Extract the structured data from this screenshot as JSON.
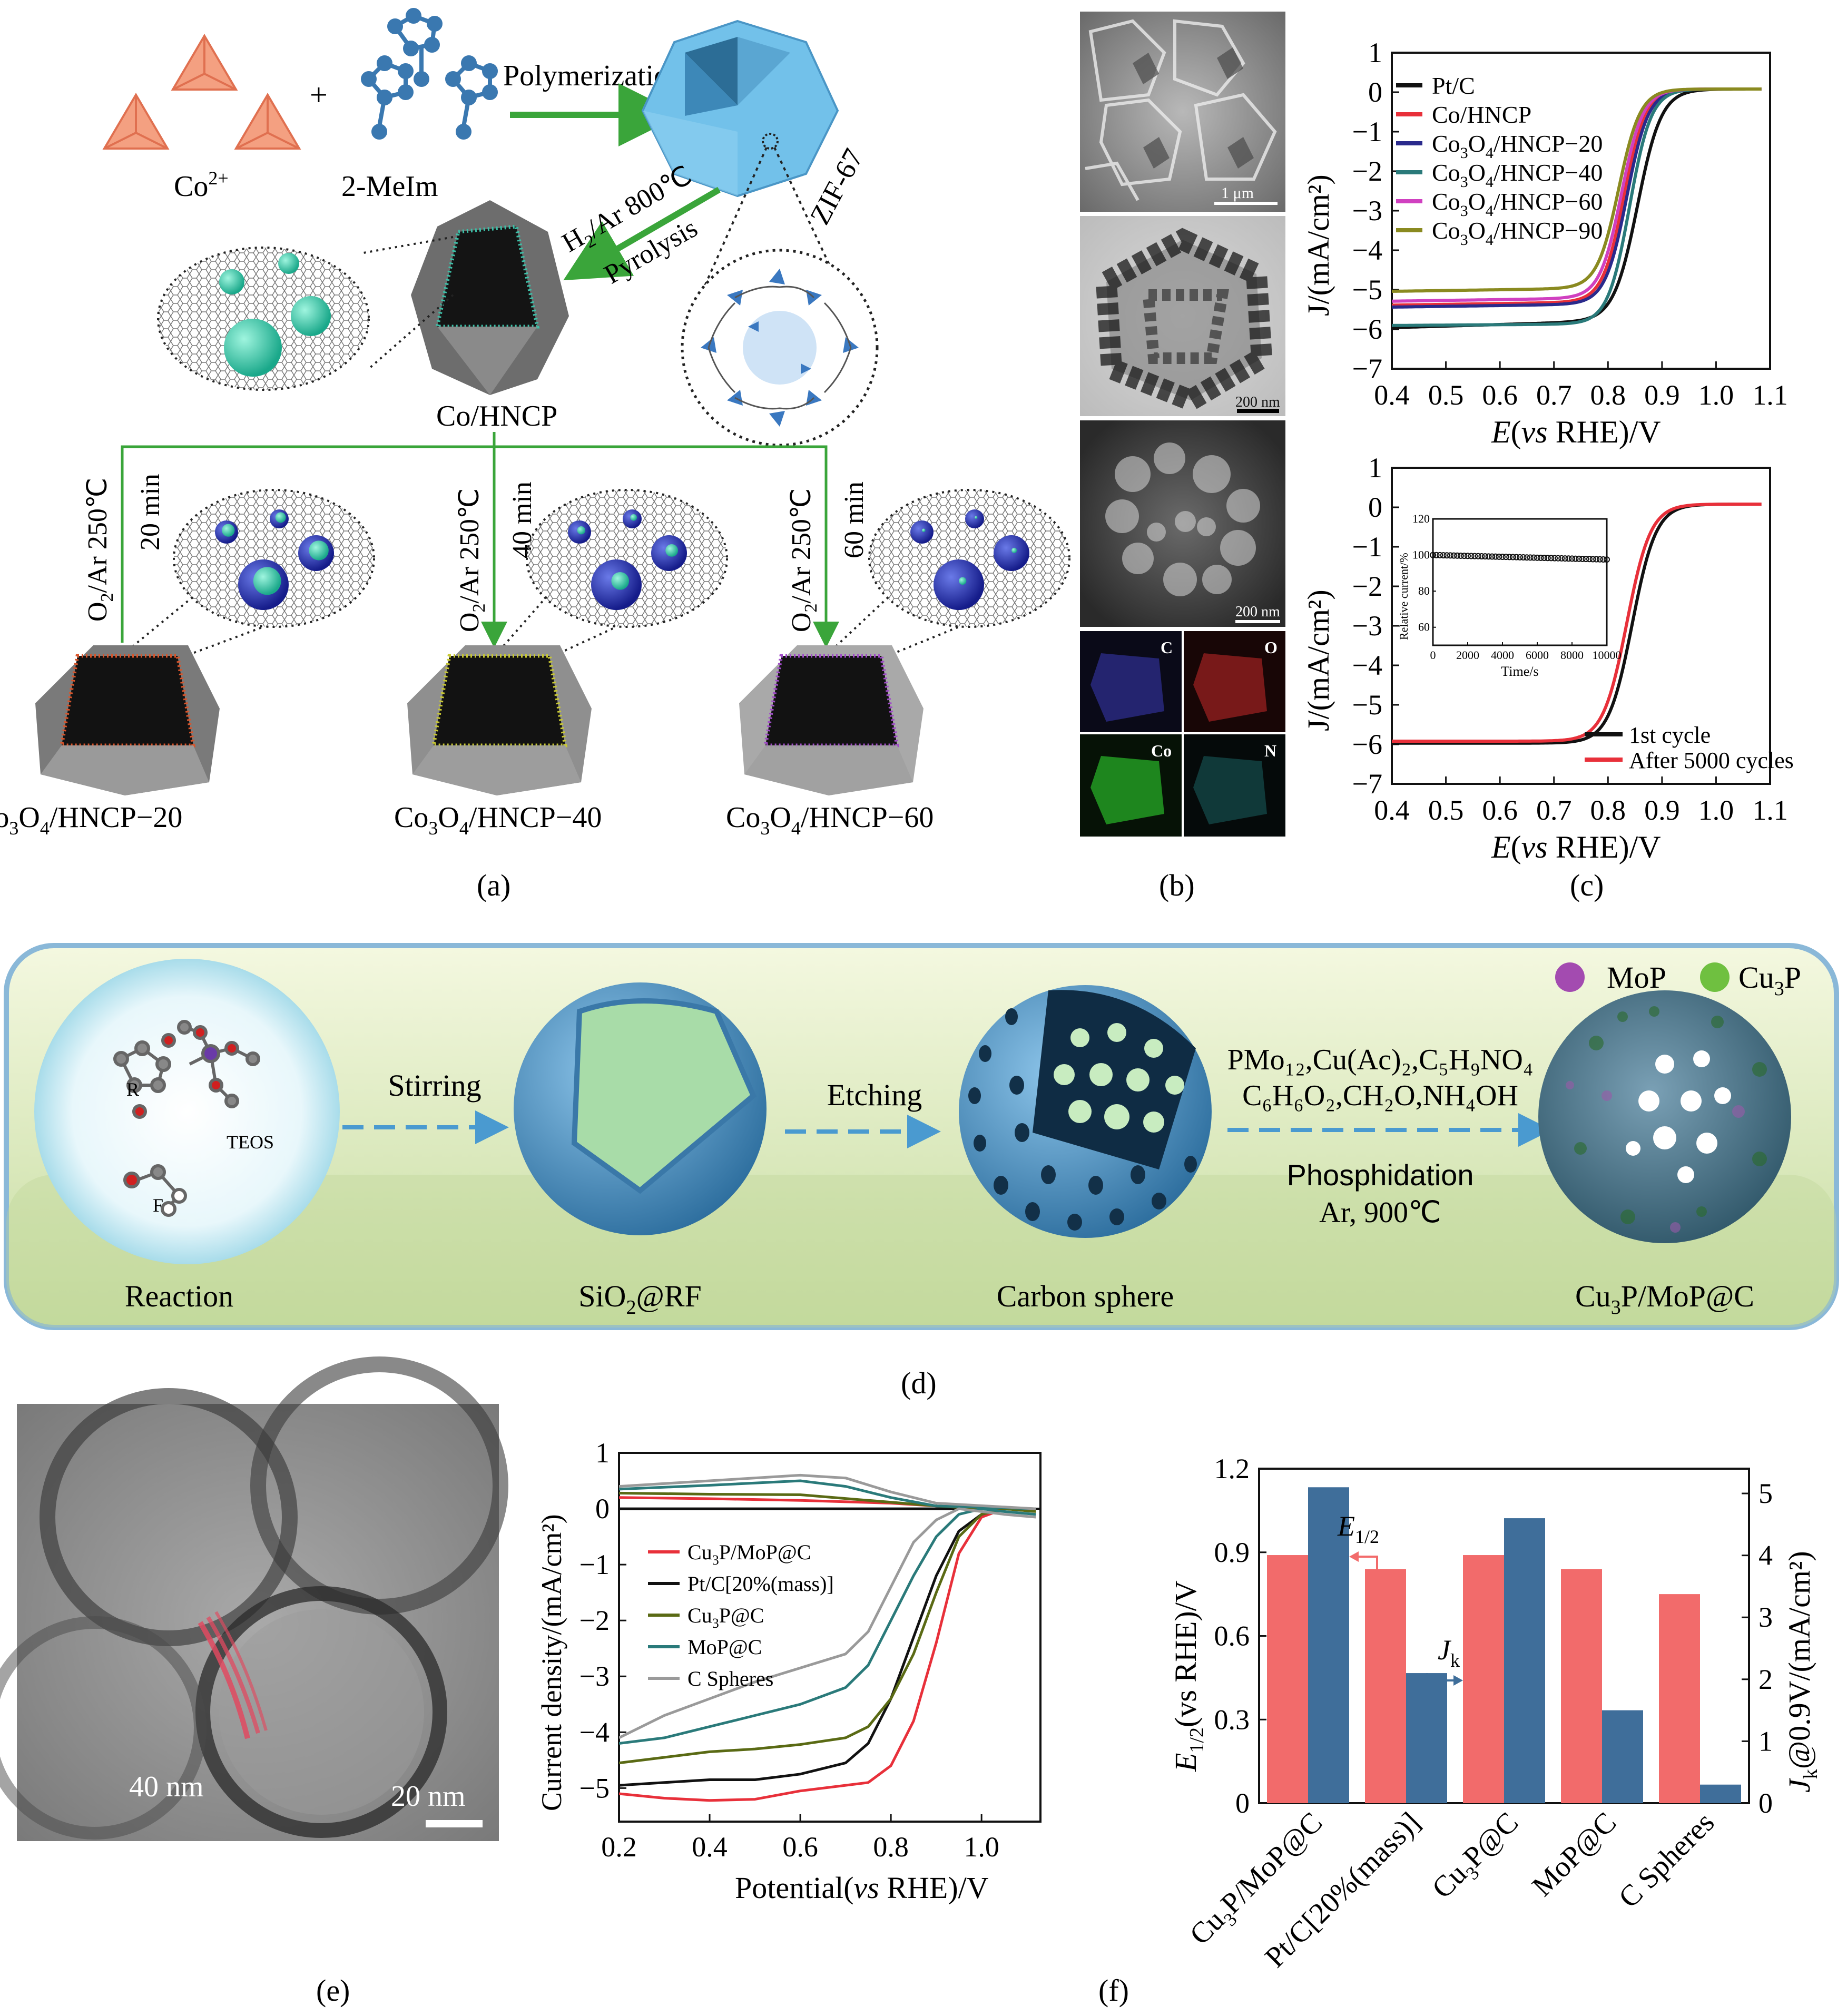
{
  "panel_labels": {
    "a": "(a)",
    "b": "(b)",
    "c": "(c)",
    "d": "(d)",
    "e": "(e)",
    "f": "(f)"
  },
  "panel_a": {
    "co_label": "Co",
    "co_sup": "2+",
    "plus": "+",
    "mim_label": "2-MeIm",
    "polymerization": "Polymerization",
    "zif_label": "ZIF-67",
    "h2ar_line1": "H",
    "h2ar_sub": "2",
    "h2ar_rest": "/Ar 800℃",
    "pyrolysis": "Pyrolysis",
    "cohncp": "Co/HNCP",
    "branches": [
      {
        "temp_a": "O",
        "temp_sub": "2",
        "temp_b": "/Ar 250℃",
        "time": "20 min",
        "label_a": "Co",
        "label_s1": "3",
        "label_b": "O",
        "label_s2": "4",
        "label_c": "/HNCP−20",
        "color": "#d9542a"
      },
      {
        "temp_a": "O",
        "temp_sub": "2",
        "temp_b": "/Ar 250℃",
        "time": "40 min",
        "label_a": "Co",
        "label_s1": "3",
        "label_b": "O",
        "label_s2": "4",
        "label_c": "/HNCP−40",
        "color": "#c8c832"
      },
      {
        "temp_a": "O",
        "temp_sub": "2",
        "temp_b": "/Ar 250℃",
        "time": "60 min",
        "label_a": "Co",
        "label_s1": "3",
        "label_b": "O",
        "label_s2": "4",
        "label_c": "/HNCP−60",
        "color": "#a04cc8"
      }
    ]
  },
  "panel_b": {
    "scale1": "1 μm",
    "scale2": "200 nm",
    "scale3": "200 nm",
    "maps": [
      "C",
      "O",
      "Co",
      "N"
    ]
  },
  "panel_c_top": {
    "chart_data": {
      "type": "line",
      "xlabel_a": "E",
      "xlabel_b": "(",
      "xlabel_c": "vs",
      "xlabel_d": " RHE)/V",
      "ylabel": "J/(mA/cm²)",
      "xlim": [
        0.4,
        1.1
      ],
      "ylim": [
        -7,
        1
      ],
      "xticks": [
        "0.4",
        "0.5",
        "0.6",
        "0.7",
        "0.8",
        "0.9",
        "1.0",
        "1.1"
      ],
      "yticks": [
        "1",
        "0",
        "−1",
        "−2",
        "−3",
        "−4",
        "−5",
        "−6",
        "−7"
      ],
      "series": [
        {
          "name": "Pt/C",
          "color": "#111111",
          "jl": -5.9,
          "e_half": 0.855,
          "w": 0.022,
          "slope": -0.4
        },
        {
          "name": "Co/HNCP",
          "color": "#e8303a",
          "jl": -5.4,
          "e_half": 0.83,
          "w": 0.02,
          "slope": -0.2
        },
        {
          "name": "Co3O4/HNCP−20",
          "color": "#2a2a8c",
          "jl": -5.45,
          "e_half": 0.835,
          "w": 0.02,
          "slope": -0.2
        },
        {
          "name": "Co3O4/HNCP−40",
          "color": "#2a7a7a",
          "jl": -5.95,
          "e_half": 0.84,
          "w": 0.02,
          "slope": -0.1
        },
        {
          "name": "Co3O4/HNCP−60",
          "color": "#d040c0",
          "jl": -5.3,
          "e_half": 0.825,
          "w": 0.02,
          "slope": -0.2
        },
        {
          "name": "Co3O4/HNCP−90",
          "color": "#8a8a20",
          "jl": -5.05,
          "e_half": 0.82,
          "w": 0.02,
          "slope": -0.2
        }
      ],
      "legend": [
        {
          "a": "Pt/C"
        },
        {
          "a": "Co/HNCP"
        },
        {
          "a": "Co",
          "s1": "3",
          "b": "O",
          "s2": "4",
          "c": "/HNCP−20"
        },
        {
          "a": "Co",
          "s1": "3",
          "b": "O",
          "s2": "4",
          "c": "/HNCP−40"
        },
        {
          "a": "Co",
          "s1": "3",
          "b": "O",
          "s2": "4",
          "c": "/HNCP−60"
        },
        {
          "a": "Co",
          "s1": "3",
          "b": "O",
          "s2": "4",
          "c": "/HNCP−90"
        }
      ]
    }
  },
  "panel_c_bottom": {
    "chart_data": {
      "type": "line",
      "xlabel_a": "E",
      "xlabel_b": "(",
      "xlabel_c": "vs",
      "xlabel_d": " RHE)/V",
      "ylabel": "J/(mA/cm²)",
      "xlim": [
        0.4,
        1.1
      ],
      "ylim": [
        -7,
        1
      ],
      "xticks": [
        "0.4",
        "0.5",
        "0.6",
        "0.7",
        "0.8",
        "0.9",
        "1.0",
        "1.1"
      ],
      "yticks": [
        "1",
        "0",
        "−1",
        "−2",
        "−3",
        "−4",
        "−5",
        "−6",
        "−7"
      ],
      "series": [
        {
          "name": "1st cycle",
          "color": "#111111",
          "jl": -6.05,
          "e_half": 0.845,
          "w": 0.022
        },
        {
          "name": "After 5000 cycles",
          "color": "#e8303a",
          "jl": -6.0,
          "e_half": 0.835,
          "w": 0.022
        }
      ],
      "inset": {
        "xlabel": "Time/s",
        "ylabel": "Relative current/%",
        "xlim": [
          0,
          10000
        ],
        "ylim": [
          50,
          120
        ],
        "xticks": [
          "0",
          "2000",
          "4000",
          "6000",
          "8000",
          "10000"
        ],
        "yticks": [
          "120",
          "100",
          "80",
          "60"
        ],
        "start": 100,
        "end": 97.5
      }
    }
  },
  "panel_d": {
    "legend_mop": "MoP",
    "legend_cu3p_a": "Cu",
    "legend_cu3p_sub": "3",
    "legend_cu3p_b": "P",
    "mol_r": "R",
    "mol_teos": "TEOS",
    "mol_f": "F",
    "step1_label": "Reaction",
    "arrow1": "Stirring",
    "step2_a": "SiO",
    "step2_sub": "2",
    "step2_b": "@RF",
    "arrow2": "Etching",
    "step3_label": "Carbon sphere",
    "reagents1": "PMo₁₂,Cu(Ac)₂,C₅H₉NO₄",
    "reagents2": "C₆H₆O₂,CH₂O,NH₄OH",
    "phosph": "Phosphidation",
    "cond": "Ar, 900℃",
    "step4_a": "Cu",
    "step4_sub": "3",
    "step4_b": "P/MoP@C"
  },
  "panel_e": {
    "label_40": "40 nm",
    "label_20": "20 nm"
  },
  "panel_f_line": {
    "chart_data": {
      "type": "line",
      "xlabel_a": "Potential(",
      "xlabel_b": "vs",
      "xlabel_c": " RHE)/V",
      "ylabel": "Current density/(mA/cm²)",
      "xlim": [
        0.2,
        1.13
      ],
      "ylim": [
        -5.6,
        1
      ],
      "xticks": [
        "0.2",
        "0.4",
        "0.6",
        "0.8",
        "1.0"
      ],
      "yticks": [
        "1",
        "0",
        "−1",
        "−2",
        "−3",
        "−4",
        "−5"
      ],
      "series": [
        {
          "name": "Cu3P/MoP@C",
          "color": "#e8303a",
          "ring": 0.2
        },
        {
          "name": "Pt/C[20%(mass)]",
          "color": "#111111",
          "ring": 0.0
        },
        {
          "name": "Cu3P@C",
          "color": "#5a6a14",
          "ring": 0.3
        },
        {
          "name": "MoP@C",
          "color": "#2a7a7a",
          "ring": 0.5
        },
        {
          "name": "C Spheres",
          "color": "#9a9a9a",
          "ring": 0.6
        }
      ],
      "legend": [
        {
          "a": "Cu",
          "s1": "3",
          "b": "P/MoP@C"
        },
        {
          "a": "Pt/C[20%(mass)]"
        },
        {
          "a": "Cu",
          "s1": "3",
          "b": "P@C"
        },
        {
          "a": "MoP@C"
        },
        {
          "a": "C Spheres"
        }
      ]
    }
  },
  "panel_f_bar": {
    "chart_data": {
      "type": "bar",
      "categories": [
        "Cu3P/MoP@C",
        "Pt/C[20%(mass)]",
        "Cu3P@C",
        "MoP@C",
        "C Spheres"
      ],
      "category_labels": [
        {
          "a": "Cu",
          "s1": "3",
          "b": "P/MoP@C"
        },
        {
          "a": "Pt/C[20%(mass)]"
        },
        {
          "a": "Cu",
          "s1": "3",
          "b": "P@C"
        },
        {
          "a": "MoP@C"
        },
        {
          "a": "C Spheres"
        }
      ],
      "series": [
        {
          "name": "E1/2",
          "axis": "left",
          "color": "#f26b6b",
          "values": [
            0.89,
            0.84,
            0.89,
            0.84,
            0.75
          ]
        },
        {
          "name": "Jk",
          "axis": "right",
          "color": "#3f6e9a",
          "values": [
            5.1,
            2.1,
            4.6,
            1.5,
            0.3
          ]
        }
      ],
      "ylabel_left_a": "E",
      "ylabel_left_sub": "1/2",
      "ylabel_left_b": "(vs RHE)/V",
      "ylabel_right_a": "J",
      "ylabel_right_sub": "k",
      "ylabel_right_b": "@0.9V/(mA/cm²)",
      "ylim_left": [
        0,
        1.2
      ],
      "ylim_right": [
        0,
        5.4
      ],
      "yticks_left": [
        "0",
        "0.3",
        "0.6",
        "0.9",
        "1.2"
      ],
      "yticks_right": [
        "0",
        "1",
        "2",
        "3",
        "4",
        "5"
      ],
      "annot_e_a": "E",
      "annot_e_sub": "1/2",
      "annot_j_a": "J",
      "annot_j_sub": "k"
    }
  }
}
